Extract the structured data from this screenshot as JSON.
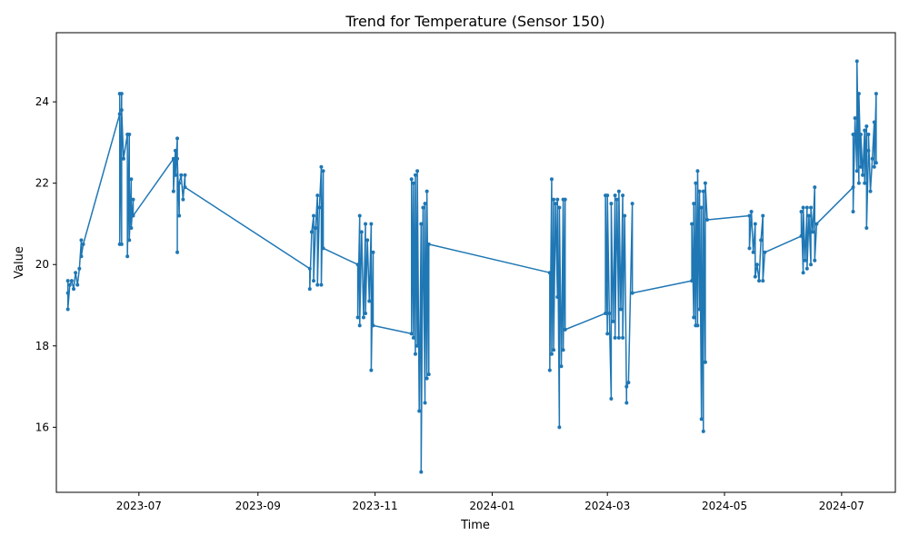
{
  "chart_data": {
    "type": "line",
    "title": "Trend for Temperature (Sensor 150)",
    "xlabel": "Time",
    "ylabel": "Value",
    "xlim": [
      "2023-05-19",
      "2024-07-29"
    ],
    "ylim": [
      14.4,
      25.7
    ],
    "x_ticks": [
      "2023-07",
      "2023-09",
      "2023-11",
      "2024-01",
      "2024-03",
      "2024-05",
      "2024-07"
    ],
    "y_ticks": [
      16,
      18,
      20,
      22,
      24
    ],
    "line_color": "#1f77b4",
    "marker": "dot",
    "legend": "none",
    "grid": false,
    "series": [
      {
        "points": [
          [
            "2023-05-25",
            19.3
          ],
          [
            "2023-05-25",
            19.6
          ],
          [
            "2023-05-25",
            18.9
          ],
          [
            "2023-05-26",
            19.5
          ],
          [
            "2023-05-27",
            19.6
          ],
          [
            "2023-05-28",
            19.4
          ],
          [
            "2023-05-29",
            19.8
          ],
          [
            "2023-05-30",
            19.5
          ],
          [
            "2023-05-31",
            19.9
          ],
          [
            "2023-06-01",
            20.6
          ],
          [
            "2023-06-01",
            20.2
          ],
          [
            "2023-06-02",
            20.5
          ],
          [
            "2023-06-21",
            23.7
          ],
          [
            "2023-06-21",
            24.2
          ],
          [
            "2023-06-21",
            20.5
          ],
          [
            "2023-06-22",
            24.2
          ],
          [
            "2023-06-22",
            20.5
          ],
          [
            "2023-06-22",
            23.8
          ],
          [
            "2023-06-23",
            22.6
          ],
          [
            "2023-06-25",
            23.2
          ],
          [
            "2023-06-25",
            20.2
          ],
          [
            "2023-06-26",
            23.2
          ],
          [
            "2023-06-26",
            20.6
          ],
          [
            "2023-06-27",
            22.1
          ],
          [
            "2023-06-27",
            20.9
          ],
          [
            "2023-06-28",
            21.6
          ],
          [
            "2023-06-28",
            21.2
          ],
          [
            "2023-07-19",
            22.6
          ],
          [
            "2023-07-19",
            21.8
          ],
          [
            "2023-07-20",
            22.8
          ],
          [
            "2023-07-20",
            22.2
          ],
          [
            "2023-07-21",
            23.1
          ],
          [
            "2023-07-21",
            20.3
          ],
          [
            "2023-07-21",
            22.6
          ],
          [
            "2023-07-22",
            21.2
          ],
          [
            "2023-07-22",
            22.0
          ],
          [
            "2023-07-23",
            22.2
          ],
          [
            "2023-07-24",
            21.6
          ],
          [
            "2023-07-25",
            22.2
          ],
          [
            "2023-07-25",
            21.9
          ],
          [
            "2023-09-28",
            19.9
          ],
          [
            "2023-09-28",
            19.4
          ],
          [
            "2023-09-29",
            20.8
          ],
          [
            "2023-09-30",
            21.2
          ],
          [
            "2023-09-30",
            19.6
          ],
          [
            "2023-10-01",
            20.9
          ],
          [
            "2023-10-02",
            21.7
          ],
          [
            "2023-10-02",
            19.5
          ],
          [
            "2023-10-03",
            21.4
          ],
          [
            "2023-10-04",
            22.4
          ],
          [
            "2023-10-04",
            19.5
          ],
          [
            "2023-10-05",
            22.3
          ],
          [
            "2023-10-05",
            20.4
          ],
          [
            "2023-10-23",
            20.0
          ],
          [
            "2023-10-23",
            18.7
          ],
          [
            "2023-10-24",
            21.2
          ],
          [
            "2023-10-24",
            18.5
          ],
          [
            "2023-10-25",
            20.8
          ],
          [
            "2023-10-26",
            18.7
          ],
          [
            "2023-10-27",
            21.0
          ],
          [
            "2023-10-27",
            18.8
          ],
          [
            "2023-10-28",
            20.6
          ],
          [
            "2023-10-29",
            19.1
          ],
          [
            "2023-10-30",
            21.0
          ],
          [
            "2023-10-30",
            17.4
          ],
          [
            "2023-10-31",
            20.3
          ],
          [
            "2023-10-31",
            18.5
          ],
          [
            "2023-11-20",
            18.3
          ],
          [
            "2023-11-20",
            22.1
          ],
          [
            "2023-11-21",
            18.2
          ],
          [
            "2023-11-21",
            22.0
          ],
          [
            "2023-11-22",
            17.8
          ],
          [
            "2023-11-22",
            22.2
          ],
          [
            "2023-11-23",
            18.0
          ],
          [
            "2023-11-23",
            22.3
          ],
          [
            "2023-11-24",
            16.4
          ],
          [
            "2023-11-25",
            21.0
          ],
          [
            "2023-11-25",
            14.9
          ],
          [
            "2023-11-26",
            21.4
          ],
          [
            "2023-11-27",
            16.6
          ],
          [
            "2023-11-27",
            21.5
          ],
          [
            "2023-11-28",
            17.2
          ],
          [
            "2023-11-28",
            21.8
          ],
          [
            "2023-11-29",
            17.3
          ],
          [
            "2023-11-29",
            20.5
          ],
          [
            "2024-01-31",
            19.8
          ],
          [
            "2024-01-31",
            17.4
          ],
          [
            "2024-02-01",
            22.1
          ],
          [
            "2024-02-01",
            17.8
          ],
          [
            "2024-02-02",
            21.6
          ],
          [
            "2024-02-02",
            17.9
          ],
          [
            "2024-02-03",
            21.5
          ],
          [
            "2024-02-04",
            19.2
          ],
          [
            "2024-02-04",
            21.6
          ],
          [
            "2024-02-05",
            16.0
          ],
          [
            "2024-02-05",
            21.4
          ],
          [
            "2024-02-06",
            17.5
          ],
          [
            "2024-02-07",
            21.6
          ],
          [
            "2024-02-07",
            17.9
          ],
          [
            "2024-02-08",
            21.6
          ],
          [
            "2024-02-08",
            18.4
          ],
          [
            "2024-02-29",
            18.8
          ],
          [
            "2024-02-29",
            21.7
          ],
          [
            "2024-03-01",
            18.3
          ],
          [
            "2024-03-01",
            21.7
          ],
          [
            "2024-03-02",
            18.8
          ],
          [
            "2024-03-03",
            16.7
          ],
          [
            "2024-03-03",
            21.5
          ],
          [
            "2024-03-04",
            18.6
          ],
          [
            "2024-03-05",
            21.7
          ],
          [
            "2024-03-05",
            18.2
          ],
          [
            "2024-03-06",
            21.6
          ],
          [
            "2024-03-07",
            18.2
          ],
          [
            "2024-03-07",
            21.8
          ],
          [
            "2024-03-08",
            18.9
          ],
          [
            "2024-03-09",
            21.7
          ],
          [
            "2024-03-09",
            18.2
          ],
          [
            "2024-03-10",
            21.2
          ],
          [
            "2024-03-11",
            16.6
          ],
          [
            "2024-03-11",
            17.0
          ],
          [
            "2024-03-12",
            17.1
          ],
          [
            "2024-03-14",
            21.5
          ],
          [
            "2024-03-14",
            19.3
          ],
          [
            "2024-04-14",
            19.6
          ],
          [
            "2024-04-14",
            21.0
          ],
          [
            "2024-04-15",
            18.7
          ],
          [
            "2024-04-15",
            21.5
          ],
          [
            "2024-04-16",
            18.5
          ],
          [
            "2024-04-16",
            22.0
          ],
          [
            "2024-04-17",
            18.5
          ],
          [
            "2024-04-17",
            22.3
          ],
          [
            "2024-04-18",
            18.9
          ],
          [
            "2024-04-18",
            21.8
          ],
          [
            "2024-04-19",
            16.2
          ],
          [
            "2024-04-19",
            21.4
          ],
          [
            "2024-04-20",
            15.9
          ],
          [
            "2024-04-20",
            21.8
          ],
          [
            "2024-04-21",
            17.6
          ],
          [
            "2024-04-21",
            22.0
          ],
          [
            "2024-04-22",
            21.1
          ],
          [
            "2024-05-14",
            21.2
          ],
          [
            "2024-05-14",
            20.4
          ],
          [
            "2024-05-15",
            21.3
          ],
          [
            "2024-05-16",
            20.3
          ],
          [
            "2024-05-17",
            21.0
          ],
          [
            "2024-05-17",
            19.7
          ],
          [
            "2024-05-18",
            20.0
          ],
          [
            "2024-05-19",
            19.6
          ],
          [
            "2024-05-20",
            20.6
          ],
          [
            "2024-05-21",
            21.2
          ],
          [
            "2024-05-21",
            19.6
          ],
          [
            "2024-05-22",
            20.3
          ],
          [
            "2024-06-10",
            20.7
          ],
          [
            "2024-06-10",
            21.3
          ],
          [
            "2024-06-11",
            19.8
          ],
          [
            "2024-06-11",
            21.4
          ],
          [
            "2024-06-12",
            20.1
          ],
          [
            "2024-06-13",
            21.4
          ],
          [
            "2024-06-13",
            19.9
          ],
          [
            "2024-06-14",
            21.2
          ],
          [
            "2024-06-15",
            20.0
          ],
          [
            "2024-06-15",
            21.4
          ],
          [
            "2024-06-16",
            20.8
          ],
          [
            "2024-06-17",
            21.9
          ],
          [
            "2024-06-17",
            20.1
          ],
          [
            "2024-06-18",
            21.0
          ],
          [
            "2024-07-07",
            21.9
          ],
          [
            "2024-07-07",
            23.2
          ],
          [
            "2024-07-07",
            21.3
          ],
          [
            "2024-07-08",
            23.6
          ],
          [
            "2024-07-09",
            22.3
          ],
          [
            "2024-07-09",
            25.0
          ],
          [
            "2024-07-10",
            22.0
          ],
          [
            "2024-07-10",
            24.2
          ],
          [
            "2024-07-11",
            22.4
          ],
          [
            "2024-07-11",
            23.2
          ],
          [
            "2024-07-12",
            22.2
          ],
          [
            "2024-07-13",
            23.3
          ],
          [
            "2024-07-13",
            22.0
          ],
          [
            "2024-07-14",
            23.4
          ],
          [
            "2024-07-14",
            20.9
          ],
          [
            "2024-07-15",
            22.8
          ],
          [
            "2024-07-15",
            23.2
          ],
          [
            "2024-07-16",
            21.8
          ],
          [
            "2024-07-17",
            22.6
          ],
          [
            "2024-07-18",
            23.5
          ],
          [
            "2024-07-18",
            22.4
          ],
          [
            "2024-07-19",
            24.2
          ],
          [
            "2024-07-19",
            22.5
          ]
        ]
      }
    ]
  }
}
